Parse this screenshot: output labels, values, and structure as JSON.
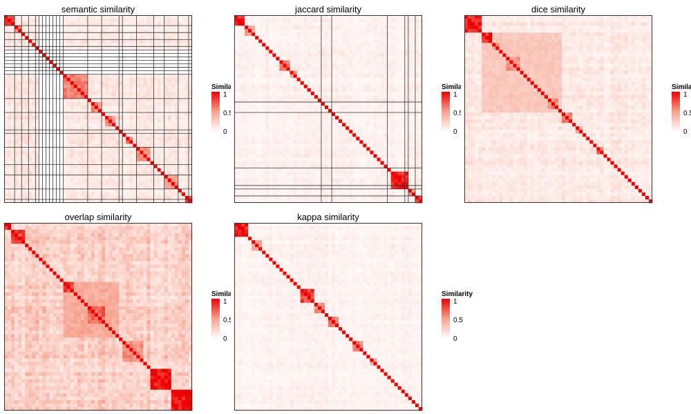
{
  "panels": [
    {
      "title": "semantic similarity"
    },
    {
      "title": "jaccard similarity"
    },
    {
      "title": "dice similarity"
    },
    {
      "title": "overlap similarity"
    },
    {
      "title": "kappa similarity"
    }
  ],
  "legend": {
    "title": "Similarity",
    "ticks": [
      "1",
      "0.5",
      "0"
    ]
  },
  "colors": {
    "high": "#ee0000",
    "mid": "#f6a38f",
    "low": "#ffffff",
    "border": "#333333"
  },
  "chart_data": [
    {
      "type": "heatmap",
      "title": "semantic similarity",
      "n": 54,
      "value_range": [
        0,
        1
      ],
      "legend_title": "Similarity",
      "legend_ticks": [
        1,
        0.5,
        0
      ],
      "diagonal": 1,
      "background_level": 0.12,
      "blocks": [
        [
          0,
          3,
          0.85
        ],
        [
          3,
          5,
          0.6
        ],
        [
          17,
          24,
          0.6
        ],
        [
          25,
          28,
          0.55
        ],
        [
          29,
          32,
          0.55
        ],
        [
          35,
          37,
          0.65
        ],
        [
          38,
          42,
          0.55
        ],
        [
          46,
          50,
          0.5
        ],
        [
          52,
          54,
          0.8
        ]
      ],
      "blank_rows": [
        10,
        11,
        12,
        13,
        14,
        15,
        16
      ],
      "blank_cols": [
        10,
        11,
        12,
        13,
        14,
        15,
        16
      ],
      "cluster_splits": [
        0,
        3,
        5,
        7,
        9,
        10,
        11,
        12,
        13,
        14,
        15,
        16,
        17,
        24,
        28,
        33,
        34,
        38,
        43,
        46,
        50,
        53,
        54
      ]
    },
    {
      "type": "heatmap",
      "title": "jaccard similarity",
      "n": 54,
      "value_range": [
        0,
        1
      ],
      "legend_title": "Similarity",
      "legend_ticks": [
        1,
        0.5,
        0
      ],
      "diagonal": 1,
      "background_level": 0.08,
      "blocks": [
        [
          0,
          3,
          0.9
        ],
        [
          3,
          6,
          0.5
        ],
        [
          13,
          16,
          0.6
        ],
        [
          16,
          18,
          0.5
        ],
        [
          45,
          50,
          0.9
        ],
        [
          50,
          52,
          0.5
        ],
        [
          52,
          54,
          0.9
        ]
      ],
      "cluster_splits": [
        0,
        25,
        28,
        44,
        49,
        50,
        52,
        54
      ]
    },
    {
      "type": "heatmap",
      "title": "dice similarity",
      "n": 54,
      "value_range": [
        0,
        1
      ],
      "legend_title": "Similarity",
      "legend_ticks": [
        1,
        0.5,
        0
      ],
      "diagonal": 1,
      "background_level": 0.12,
      "blocks": [
        [
          0,
          5,
          0.9
        ],
        [
          5,
          28,
          0.3
        ],
        [
          5,
          8,
          0.9
        ],
        [
          8,
          10,
          0.5
        ],
        [
          12,
          16,
          0.55
        ],
        [
          24,
          27,
          0.6
        ],
        [
          28,
          31,
          0.6
        ],
        [
          32,
          34,
          0.5
        ],
        [
          38,
          40,
          0.7
        ]
      ],
      "cluster_splits": []
    },
    {
      "type": "heatmap",
      "title": "overlap similarity",
      "n": 54,
      "value_range": [
        0,
        1
      ],
      "legend_title": "Similarity",
      "legend_ticks": [
        1,
        0.5,
        0
      ],
      "diagonal": 1,
      "background_level": 0.25,
      "blocks": [
        [
          0,
          2,
          0.9
        ],
        [
          2,
          6,
          0.8
        ],
        [
          17,
          33,
          0.45
        ],
        [
          17,
          20,
          0.8
        ],
        [
          24,
          29,
          0.7
        ],
        [
          34,
          40,
          0.55
        ],
        [
          42,
          48,
          0.95
        ],
        [
          48,
          54,
          0.95
        ]
      ],
      "cluster_splits": []
    },
    {
      "type": "heatmap",
      "title": "kappa similarity",
      "n": 54,
      "value_range": [
        0,
        1
      ],
      "legend_title": "Similarity",
      "legend_ticks": [
        1,
        0.5,
        0
      ],
      "diagonal": 1,
      "background_level": 0.07,
      "blocks": [
        [
          0,
          4,
          0.9
        ],
        [
          5,
          8,
          0.5
        ],
        [
          19,
          23,
          0.8
        ],
        [
          23,
          26,
          0.6
        ],
        [
          27,
          30,
          0.6
        ],
        [
          34,
          37,
          0.6
        ],
        [
          39,
          41,
          0.5
        ]
      ],
      "cluster_splits": []
    }
  ]
}
